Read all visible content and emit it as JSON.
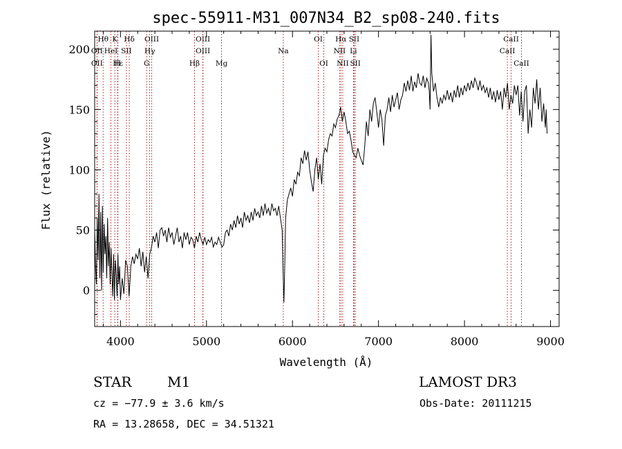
{
  "chart_data": {
    "type": "line",
    "title": "spec-55911-M31_007N34_B2_sp08-240.fits",
    "xlabel": "Wavelength (Å)",
    "ylabel": "Flux (relative)",
    "xlim": [
      3700,
      9100
    ],
    "ylim": [
      -30,
      215
    ],
    "xticks": [
      4000,
      5000,
      6000,
      7000,
      8000,
      9000
    ],
    "yticks": [
      0,
      50,
      100,
      150,
      200
    ],
    "line_color": "#000000",
    "marker_color": "#b22222",
    "series": [
      {
        "name": "flux",
        "points": [
          [
            3700,
            50
          ],
          [
            3710,
            20
          ],
          [
            3720,
            5
          ],
          [
            3730,
            60
          ],
          [
            3740,
            25
          ],
          [
            3750,
            80
          ],
          [
            3760,
            10
          ],
          [
            3770,
            65
          ],
          [
            3780,
            0
          ],
          [
            3790,
            70
          ],
          [
            3800,
            15
          ],
          [
            3810,
            55
          ],
          [
            3820,
            30
          ],
          [
            3830,
            45
          ],
          [
            3840,
            10
          ],
          [
            3850,
            60
          ],
          [
            3860,
            20
          ],
          [
            3870,
            40
          ],
          [
            3880,
            5
          ],
          [
            3890,
            35
          ],
          [
            3900,
            15
          ],
          [
            3910,
            -5
          ],
          [
            3920,
            30
          ],
          [
            3930,
            -8
          ],
          [
            3940,
            25
          ],
          [
            3950,
            15
          ],
          [
            3960,
            -5
          ],
          [
            3970,
            30
          ],
          [
            3980,
            5
          ],
          [
            3990,
            20
          ],
          [
            4000,
            -8
          ],
          [
            4020,
            10
          ],
          [
            4040,
            -3
          ],
          [
            4060,
            25
          ],
          [
            4080,
            20
          ],
          [
            4100,
            -5
          ],
          [
            4120,
            20
          ],
          [
            4140,
            28
          ],
          [
            4160,
            22
          ],
          [
            4180,
            30
          ],
          [
            4200,
            26
          ],
          [
            4220,
            35
          ],
          [
            4240,
            20
          ],
          [
            4260,
            32
          ],
          [
            4280,
            15
          ],
          [
            4300,
            28
          ],
          [
            4320,
            10
          ],
          [
            4340,
            30
          ],
          [
            4360,
            35
          ],
          [
            4380,
            45
          ],
          [
            4400,
            40
          ],
          [
            4420,
            48
          ],
          [
            4440,
            35
          ],
          [
            4460,
            50
          ],
          [
            4480,
            52
          ],
          [
            4500,
            45
          ],
          [
            4520,
            50
          ],
          [
            4540,
            40
          ],
          [
            4560,
            52
          ],
          [
            4580,
            44
          ],
          [
            4600,
            48
          ],
          [
            4620,
            38
          ],
          [
            4640,
            45
          ],
          [
            4660,
            52
          ],
          [
            4680,
            40
          ],
          [
            4700,
            45
          ],
          [
            4720,
            35
          ],
          [
            4740,
            48
          ],
          [
            4760,
            42
          ],
          [
            4780,
            48
          ],
          [
            4800,
            38
          ],
          [
            4820,
            44
          ],
          [
            4840,
            42
          ],
          [
            4860,
            35
          ],
          [
            4880,
            45
          ],
          [
            4900,
            40
          ],
          [
            4920,
            48
          ],
          [
            4940,
            42
          ],
          [
            4960,
            38
          ],
          [
            4980,
            44
          ],
          [
            5000,
            38
          ],
          [
            5020,
            42
          ],
          [
            5040,
            40
          ],
          [
            5060,
            44
          ],
          [
            5080,
            36
          ],
          [
            5100,
            40
          ],
          [
            5120,
            38
          ],
          [
            5140,
            44
          ],
          [
            5160,
            40
          ],
          [
            5180,
            36
          ],
          [
            5200,
            38
          ],
          [
            5220,
            48
          ],
          [
            5240,
            50
          ],
          [
            5260,
            45
          ],
          [
            5280,
            55
          ],
          [
            5300,
            50
          ],
          [
            5320,
            58
          ],
          [
            5340,
            52
          ],
          [
            5360,
            62
          ],
          [
            5380,
            55
          ],
          [
            5400,
            60
          ],
          [
            5420,
            52
          ],
          [
            5440,
            65
          ],
          [
            5460,
            58
          ],
          [
            5480,
            62
          ],
          [
            5500,
            56
          ],
          [
            5520,
            65
          ],
          [
            5540,
            58
          ],
          [
            5560,
            68
          ],
          [
            5580,
            62
          ],
          [
            5600,
            65
          ],
          [
            5620,
            60
          ],
          [
            5640,
            70
          ],
          [
            5660,
            62
          ],
          [
            5680,
            72
          ],
          [
            5700,
            64
          ],
          [
            5720,
            68
          ],
          [
            5740,
            62
          ],
          [
            5760,
            72
          ],
          [
            5780,
            66
          ],
          [
            5800,
            68
          ],
          [
            5820,
            62
          ],
          [
            5840,
            70
          ],
          [
            5860,
            60
          ],
          [
            5880,
            50
          ],
          [
            5890,
            18
          ],
          [
            5900,
            -10
          ],
          [
            5910,
            20
          ],
          [
            5920,
            60
          ],
          [
            5940,
            75
          ],
          [
            5960,
            80
          ],
          [
            5980,
            85
          ],
          [
            6000,
            78
          ],
          [
            6020,
            92
          ],
          [
            6040,
            88
          ],
          [
            6060,
            98
          ],
          [
            6080,
            95
          ],
          [
            6100,
            110
          ],
          [
            6120,
            105
          ],
          [
            6140,
            116
          ],
          [
            6160,
            108
          ],
          [
            6180,
            115
          ],
          [
            6200,
            100
          ],
          [
            6220,
            90
          ],
          [
            6240,
            82
          ],
          [
            6260,
            100
          ],
          [
            6280,
            110
          ],
          [
            6300,
            92
          ],
          [
            6320,
            105
          ],
          [
            6340,
            88
          ],
          [
            6360,
            112
          ],
          [
            6380,
            118
          ],
          [
            6400,
            115
          ],
          [
            6420,
            125
          ],
          [
            6440,
            130
          ],
          [
            6460,
            128
          ],
          [
            6480,
            138
          ],
          [
            6500,
            135
          ],
          [
            6520,
            142
          ],
          [
            6540,
            145
          ],
          [
            6560,
            152
          ],
          [
            6580,
            140
          ],
          [
            6600,
            148
          ],
          [
            6620,
            140
          ],
          [
            6640,
            130
          ],
          [
            6660,
            132
          ],
          [
            6680,
            125
          ],
          [
            6700,
            115
          ],
          [
            6720,
            112
          ],
          [
            6740,
            110
          ],
          [
            6760,
            118
          ],
          [
            6780,
            112
          ],
          [
            6800,
            108
          ],
          [
            6820,
            104
          ],
          [
            6840,
            120
          ],
          [
            6860,
            140
          ],
          [
            6880,
            128
          ],
          [
            6900,
            150
          ],
          [
            6920,
            140
          ],
          [
            6940,
            155
          ],
          [
            6960,
            160
          ],
          [
            6980,
            148
          ],
          [
            7000,
            135
          ],
          [
            7020,
            150
          ],
          [
            7040,
            142
          ],
          [
            7060,
            120
          ],
          [
            7080,
            145
          ],
          [
            7100,
            150
          ],
          [
            7120,
            160
          ],
          [
            7140,
            148
          ],
          [
            7160,
            162
          ],
          [
            7180,
            152
          ],
          [
            7200,
            158
          ],
          [
            7220,
            164
          ],
          [
            7240,
            150
          ],
          [
            7260,
            158
          ],
          [
            7280,
            162
          ],
          [
            7300,
            172
          ],
          [
            7320,
            165
          ],
          [
            7340,
            174
          ],
          [
            7360,
            166
          ],
          [
            7380,
            178
          ],
          [
            7400,
            165
          ],
          [
            7420,
            173
          ],
          [
            7440,
            168
          ],
          [
            7460,
            180
          ],
          [
            7480,
            172
          ],
          [
            7500,
            170
          ],
          [
            7520,
            178
          ],
          [
            7540,
            168
          ],
          [
            7560,
            176
          ],
          [
            7580,
            172
          ],
          [
            7590,
            165
          ],
          [
            7600,
            150
          ],
          [
            7610,
            212
          ],
          [
            7620,
            180
          ],
          [
            7640,
            165
          ],
          [
            7660,
            172
          ],
          [
            7680,
            160
          ],
          [
            7700,
            152
          ],
          [
            7720,
            160
          ],
          [
            7740,
            155
          ],
          [
            7760,
            162
          ],
          [
            7780,
            158
          ],
          [
            7800,
            166
          ],
          [
            7820,
            158
          ],
          [
            7840,
            164
          ],
          [
            7860,
            156
          ],
          [
            7880,
            166
          ],
          [
            7900,
            160
          ],
          [
            7920,
            170
          ],
          [
            7940,
            160
          ],
          [
            7960,
            168
          ],
          [
            7980,
            162
          ],
          [
            8000,
            170
          ],
          [
            8020,
            165
          ],
          [
            8040,
            172
          ],
          [
            8060,
            166
          ],
          [
            8080,
            174
          ],
          [
            8100,
            168
          ],
          [
            8120,
            176
          ],
          [
            8140,
            172
          ],
          [
            8160,
            166
          ],
          [
            8180,
            174
          ],
          [
            8200,
            166
          ],
          [
            8220,
            170
          ],
          [
            8240,
            164
          ],
          [
            8260,
            168
          ],
          [
            8280,
            160
          ],
          [
            8300,
            168
          ],
          [
            8320,
            158
          ],
          [
            8340,
            165
          ],
          [
            8360,
            156
          ],
          [
            8380,
            166
          ],
          [
            8400,
            158
          ],
          [
            8420,
            165
          ],
          [
            8440,
            150
          ],
          [
            8460,
            168
          ],
          [
            8480,
            160
          ],
          [
            8500,
            172
          ],
          [
            8520,
            150
          ],
          [
            8540,
            162
          ],
          [
            8560,
            155
          ],
          [
            8580,
            170
          ],
          [
            8600,
            162
          ],
          [
            8620,
            170
          ],
          [
            8640,
            145
          ],
          [
            8660,
            165
          ],
          [
            8680,
            140
          ],
          [
            8700,
            165
          ],
          [
            8720,
            170
          ],
          [
            8740,
            130
          ],
          [
            8760,
            150
          ],
          [
            8780,
            135
          ],
          [
            8800,
            168
          ],
          [
            8820,
            155
          ],
          [
            8840,
            175
          ],
          [
            8860,
            150
          ],
          [
            8880,
            168
          ],
          [
            8900,
            140
          ],
          [
            8920,
            155
          ],
          [
            8940,
            135
          ],
          [
            8950,
            150
          ],
          [
            8960,
            130
          ]
        ]
      }
    ],
    "lines": [
      {
        "label": "Hθ",
        "w": 3798,
        "row": 0
      },
      {
        "label": "K",
        "w": 3934,
        "row": 0
      },
      {
        "label": "Hδ",
        "w": 4102,
        "row": 0
      },
      {
        "label": "OIII",
        "w": 4363,
        "row": 0
      },
      {
        "label": "OIII",
        "w": 4959,
        "row": 0
      },
      {
        "label": "OI",
        "w": 6300,
        "row": 0
      },
      {
        "label": "Hα",
        "w": 6563,
        "row": 0
      },
      {
        "label": "SII",
        "w": 6717,
        "row": 0
      },
      {
        "label": "CaII",
        "w": 8542,
        "row": 0
      },
      {
        "label": "OII",
        "w": 3727,
        "row": 1
      },
      {
        "label": "HeI",
        "w": 3889,
        "row": 1
      },
      {
        "label": "SII",
        "w": 4069,
        "row": 1
      },
      {
        "label": "Hγ",
        "w": 4340,
        "row": 1
      },
      {
        "label": "OIII",
        "w": 4959,
        "row": 1
      },
      {
        "label": "NII",
        "w": 6548,
        "row": 1
      },
      {
        "label": "Li",
        "w": 6708,
        "row": 1
      },
      {
        "label": "CaII",
        "w": 8498,
        "row": 1
      },
      {
        "label": "OII",
        "w": 3727,
        "row": 2
      },
      {
        "label": "Hε",
        "w": 3970,
        "row": 2
      },
      {
        "label": "H",
        "w": 3968,
        "row": 2
      },
      {
        "label": "G",
        "w": 4304,
        "row": 2
      },
      {
        "label": "Hβ",
        "w": 4861,
        "row": 2
      },
      {
        "label": "Mg",
        "w": 5175,
        "row": 2
      },
      {
        "label": "Na",
        "w": 5893,
        "row": 1
      },
      {
        "label": "OI",
        "w": 6364,
        "row": 2
      },
      {
        "label": "NII",
        "w": 6584,
        "row": 2
      },
      {
        "label": "SII",
        "w": 6731,
        "row": 2
      },
      {
        "label": "CaII",
        "w": 8662,
        "row": 2
      }
    ]
  },
  "info": {
    "class_label": "STAR",
    "subclass": "M1",
    "survey": "LAMOST DR3",
    "cz": "cz = −77.9 ± 3.6 km/s",
    "obs_date": "Obs-Date: 20111215",
    "coords": "RA =  13.28658, DEC =  34.51321"
  }
}
